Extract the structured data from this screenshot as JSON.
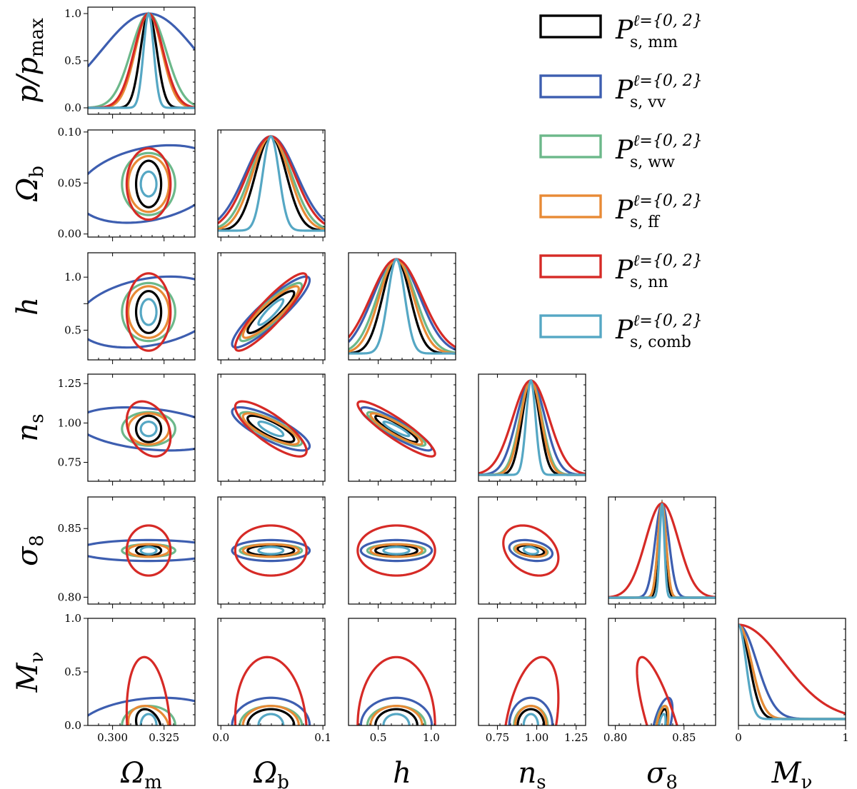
{
  "chart_data": {
    "type": "corner",
    "parameters": [
      {
        "key": "Om",
        "label": "Ω",
        "sub": "m",
        "range": [
          0.288,
          0.34
        ],
        "ticks": [
          0.3,
          0.325
        ],
        "tick_labels": [
          "0.300",
          "0.325"
        ],
        "ylabel": "",
        "fiducial": 0.3175
      },
      {
        "key": "Ob",
        "label": "Ω",
        "sub": "b",
        "range": [
          -0.003,
          0.102
        ],
        "ticks": [
          0.0,
          0.1
        ],
        "tick_labels": [
          "0.0",
          "0.1"
        ],
        "yticks": [
          0.0,
          0.05,
          0.1
        ],
        "ytick_labels": [
          "0.00",
          "0.05",
          "0.10"
        ],
        "fiducial": 0.049
      },
      {
        "key": "h",
        "label": "h",
        "sub": "",
        "range": [
          0.22,
          1.23
        ],
        "ticks": [
          0.5,
          1.0
        ],
        "tick_labels": [
          "0.5",
          "1.0"
        ],
        "yticks": [
          0.5,
          0.75,
          1.0
        ],
        "ytick_labels": [
          "0.5",
          "",
          "1.0"
        ],
        "fiducial": 0.6711
      },
      {
        "key": "ns",
        "label": "n",
        "sub": "s",
        "range": [
          0.63,
          1.31
        ],
        "ticks": [
          0.75,
          1.0,
          1.25
        ],
        "tick_labels": [
          "0.75",
          "1.00",
          "1.25"
        ],
        "yticks": [
          0.75,
          1.0,
          1.25
        ],
        "ytick_labels": [
          "0.75",
          "1.00",
          "1.25"
        ],
        "fiducial": 0.9624
      },
      {
        "key": "s8",
        "label": "σ",
        "sub": "8",
        "range": [
          0.795,
          0.873
        ],
        "ticks": [
          0.8,
          0.85
        ],
        "tick_labels": [
          "0.80",
          "0.85"
        ],
        "yticks": [
          0.8,
          0.85
        ],
        "ytick_labels": [
          "0.80",
          "0.85"
        ],
        "fiducial": 0.834
      },
      {
        "key": "Mnu",
        "label": "M",
        "sub": "ν",
        "range": [
          0.0,
          1.0
        ],
        "ticks": [
          0.0,
          1.0
        ],
        "tick_labels": [
          "0",
          "1"
        ],
        "yticks": [
          0.0,
          0.5,
          1.0
        ],
        "ytick_labels": [
          "0.0",
          "0.5",
          "1.0"
        ],
        "fiducial": 0.0
      }
    ],
    "diag_ylabel": {
      "text": "p/p",
      "sub": "max"
    },
    "diag_yticks": [
      0.0,
      0.5,
      1.0
    ],
    "diag_ytick_labels": [
      "0.0",
      "0.5",
      "1.0"
    ],
    "series": [
      {
        "name_main": "P",
        "name_sup": "ℓ={0, 2}",
        "name_sub": "s, mm",
        "color": "#000000",
        "sigma": [
          0.004,
          0.015,
          0.13,
          0.055,
          0.0025,
          0.1
        ],
        "corr": {
          "Ob-h": 0.9,
          "Ob-ns": -0.8,
          "h-ns": -0.9,
          "ns-s8": -0.3,
          "s8-Mnu": 0.5,
          "Om-Mnu": -0.3
        }
      },
      {
        "name_main": "P",
        "name_sup": "ℓ={0, 2}",
        "name_sub": "s, vv",
        "color": "#3d5eb0",
        "sigma": [
          0.023,
          0.025,
          0.22,
          0.09,
          0.005,
          0.17
        ],
        "corr": {
          "Ob-h": 0.9,
          "Ob-ns": -0.8,
          "h-ns": -0.9,
          "ns-s8": -0.3,
          "s8-Mnu": 0.6,
          "Om-Mnu": 0.2,
          "Om-Ob": 0.3,
          "Om-h": 0.3,
          "Om-ns": -0.3
        }
      },
      {
        "name_main": "P",
        "name_sup": "ℓ={0, 2}",
        "name_sub": "s, ww",
        "color": "#6cb88a",
        "sigma": [
          0.0085,
          0.02,
          0.18,
          0.07,
          0.003,
          0.12
        ],
        "corr": {
          "Ob-h": 0.9,
          "Ob-ns": -0.8,
          "h-ns": -0.9,
          "ns-s8": -0.3,
          "s8-Mnu": 0.4
        }
      },
      {
        "name_main": "P",
        "name_sup": "ℓ={0, 2}",
        "name_sub": "s, ff",
        "color": "#e88a35",
        "sigma": [
          0.0065,
          0.018,
          0.16,
          0.065,
          0.003,
          0.12
        ],
        "corr": {
          "Ob-h": 0.9,
          "Ob-ns": -0.8,
          "h-ns": -0.9,
          "ns-s8": -0.3,
          "s8-Mnu": 0.5,
          "Om-Mnu": -0.2
        }
      },
      {
        "name_main": "P",
        "name_sup": "ℓ={0, 2}",
        "name_sub": "s, nn",
        "color": "#d62a26",
        "sigma": [
          0.007,
          0.023,
          0.24,
          0.115,
          0.012,
          0.42
        ],
        "corr": {
          "Ob-h": 0.9,
          "Ob-ns": -0.8,
          "h-ns": -0.9,
          "ns-s8": -0.3,
          "s8-Mnu": -0.8,
          "Om-Mnu": -0.2,
          "Om-ns": -0.3,
          "Ob-Mnu": -0.1,
          "ns-Mnu": 0.4
        }
      },
      {
        "name_main": "P",
        "name_sup": "ℓ={0, 2}",
        "name_sub": "s, comb",
        "color": "#55a7c4",
        "sigma": [
          0.0025,
          0.008,
          0.08,
          0.03,
          0.0017,
          0.07
        ],
        "corr": {
          "Ob-h": 0.9,
          "Ob-ns": -0.8,
          "h-ns": -0.9,
          "ns-s8": -0.3,
          "s8-Mnu": 0.5
        }
      }
    ],
    "contour_level_sigma": 1.52,
    "legend_placement": "top-right",
    "grid": false
  }
}
